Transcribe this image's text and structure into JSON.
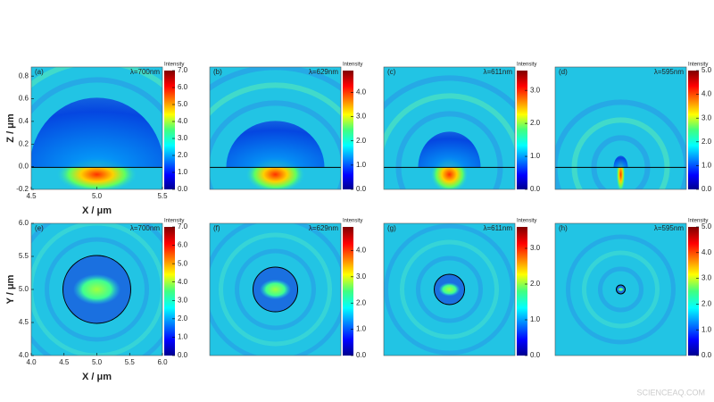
{
  "chart_data": [
    {
      "type": "heatmap",
      "panel": "(a)",
      "annotation": "λ=700nm",
      "colorbar_label": "Intensity",
      "colorbar_lim": [
        0,
        7
      ],
      "colorbar_ticks": [
        {
          "value": 0,
          "label": "0.0"
        },
        {
          "value": 1,
          "label": "1.0"
        },
        {
          "value": 2,
          "label": "2.0"
        },
        {
          "value": 3,
          "label": "3.0"
        },
        {
          "value": 4,
          "label": "4.0"
        },
        {
          "value": 5,
          "label": "5.0"
        },
        {
          "value": 6,
          "label": "6.0"
        },
        {
          "value": 7,
          "label": "7.0"
        }
      ],
      "xlabel": "X / μm",
      "ylabel": "Z / μm",
      "xlim": [
        4.5,
        5.5
      ],
      "ylim": [
        -0.2,
        0.88
      ],
      "xticks": [
        4.5,
        {
          "value": 5,
          "label": "5.0"
        },
        5.5
      ],
      "yticks": [
        -0.2,
        {
          "value": 0,
          "label": "0.0"
        },
        0.2,
        0.4,
        0.6,
        0.8
      ]
    },
    {
      "type": "heatmap",
      "panel": "(b)",
      "annotation": "λ=629nm",
      "colorbar_label": "Intensity",
      "colorbar_lim": [
        0,
        4.9
      ],
      "colorbar_ticks": [
        {
          "value": 0,
          "label": "0.0"
        },
        {
          "value": 1,
          "label": "1.0"
        },
        {
          "value": 2,
          "label": "2.0"
        },
        {
          "value": 3,
          "label": "3.0"
        },
        {
          "value": 4,
          "label": "4.0"
        }
      ]
    },
    {
      "type": "heatmap",
      "panel": "(c)",
      "annotation": "λ=611nm",
      "colorbar_label": "Intensity",
      "colorbar_lim": [
        0,
        3.6
      ],
      "colorbar_ticks": [
        {
          "value": 0,
          "label": "0.0"
        },
        {
          "value": 1,
          "label": "1.0"
        },
        {
          "value": 2,
          "label": "2.0"
        },
        {
          "value": 3,
          "label": "3.0"
        }
      ]
    },
    {
      "type": "heatmap",
      "panel": "(d)",
      "annotation": "λ=595nm",
      "colorbar_label": "Intensity",
      "colorbar_lim": [
        0,
        5
      ],
      "colorbar_ticks": [
        {
          "value": 0,
          "label": "0.0"
        },
        {
          "value": 1,
          "label": "1.0"
        },
        {
          "value": 2,
          "label": "2.0"
        },
        {
          "value": 3,
          "label": "3.0"
        },
        {
          "value": 4,
          "label": "4.0"
        },
        {
          "value": 5,
          "label": "5.0"
        }
      ]
    },
    {
      "type": "heatmap",
      "panel": "(e)",
      "annotation": "λ=700nm",
      "colorbar_label": "Intensity",
      "colorbar_lim": [
        0,
        7
      ],
      "colorbar_ticks": [
        {
          "value": 0,
          "label": "0.0"
        },
        {
          "value": 1,
          "label": "1.0"
        },
        {
          "value": 2,
          "label": "2.0"
        },
        {
          "value": 3,
          "label": "3.0"
        },
        {
          "value": 4,
          "label": "4.0"
        },
        {
          "value": 5,
          "label": "5.0"
        },
        {
          "value": 6,
          "label": "6.0"
        },
        {
          "value": 7,
          "label": "7.0"
        }
      ],
      "xlabel": "X / μm",
      "ylabel": "Y / μm",
      "xlim": [
        4,
        6
      ],
      "ylim": [
        4,
        6
      ],
      "xticks": [
        {
          "value": 4,
          "label": "4.0"
        },
        4.5,
        {
          "value": 5,
          "label": "5.0"
        },
        5.5,
        {
          "value": 6,
          "label": "6.0"
        }
      ],
      "yticks": [
        {
          "value": 4,
          "label": "4.0"
        },
        4.5,
        {
          "value": 5,
          "label": "5.0"
        },
        5.5,
        {
          "value": 6,
          "label": "6.0"
        }
      ]
    },
    {
      "type": "heatmap",
      "panel": "(f)",
      "annotation": "λ=629nm",
      "colorbar_label": "Intensity",
      "colorbar_lim": [
        0,
        4.9
      ],
      "colorbar_ticks": [
        {
          "value": 0,
          "label": "0.0"
        },
        {
          "value": 1,
          "label": "1.0"
        },
        {
          "value": 2,
          "label": "2.0"
        },
        {
          "value": 3,
          "label": "3.0"
        },
        {
          "value": 4,
          "label": "4.0"
        }
      ]
    },
    {
      "type": "heatmap",
      "panel": "(g)",
      "annotation": "λ=611nm",
      "colorbar_label": "Intensity",
      "colorbar_lim": [
        0,
        3.6
      ],
      "colorbar_ticks": [
        {
          "value": 0,
          "label": "0.0"
        },
        {
          "value": 1,
          "label": "1.0"
        },
        {
          "value": 2,
          "label": "2.0"
        },
        {
          "value": 3,
          "label": "3.0"
        }
      ]
    },
    {
      "type": "heatmap",
      "panel": "(h)",
      "annotation": "λ=595nm",
      "colorbar_label": "Intensity",
      "colorbar_lim": [
        0,
        5
      ],
      "colorbar_ticks": [
        {
          "value": 0,
          "label": "0.0"
        },
        {
          "value": 1,
          "label": "1.0"
        },
        {
          "value": 2,
          "label": "2.0"
        },
        {
          "value": 3,
          "label": "3.0"
        },
        {
          "value": 4,
          "label": "4.0"
        },
        {
          "value": 5,
          "label": "5.0"
        }
      ]
    }
  ],
  "watermark": "SCIENCEAQ.COM"
}
